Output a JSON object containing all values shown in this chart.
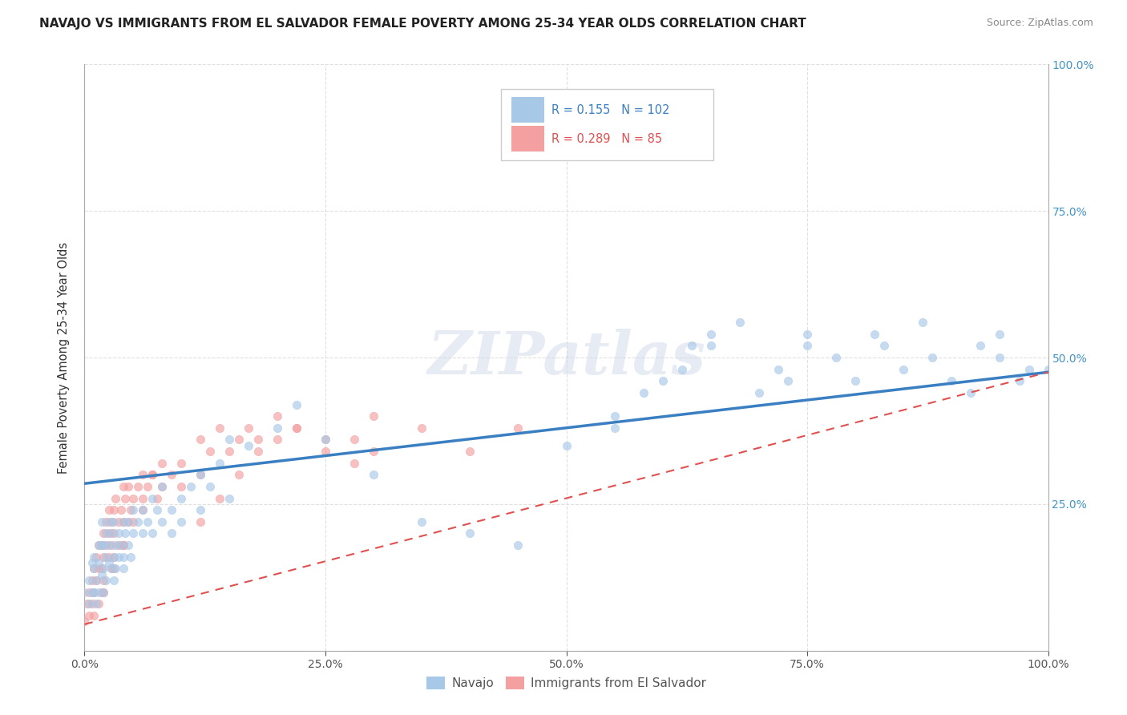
{
  "title": "NAVAJO VS IMMIGRANTS FROM EL SALVADOR FEMALE POVERTY AMONG 25-34 YEAR OLDS CORRELATION CHART",
  "source": "Source: ZipAtlas.com",
  "ylabel": "Female Poverty Among 25-34 Year Olds",
  "navajo_color": "#a8c8e8",
  "salvador_color": "#f4a0a0",
  "navajo_line_color": "#3a7fc1",
  "salvador_line_color": "#e05050",
  "R_navajo": 0.155,
  "N_navajo": 102,
  "R_salvador": 0.289,
  "N_salvador": 85,
  "xlim": [
    0,
    1
  ],
  "ylim": [
    0,
    1
  ],
  "xtick_positions": [
    0,
    0.25,
    0.5,
    0.75,
    1.0
  ],
  "xtick_labels": [
    "0.0%",
    "25.0%",
    "50.0%",
    "75.0%",
    "100.0%"
  ],
  "right_ytick_positions": [
    0.25,
    0.5,
    0.75,
    1.0
  ],
  "right_ytick_labels": [
    "25.0%",
    "50.0%",
    "75.0%",
    "100.0%"
  ],
  "watermark": "ZIPatlas",
  "legend_bottom_labels": [
    "Navajo",
    "Immigrants from El Salvador"
  ],
  "navajo_line_x0": 0.0,
  "navajo_line_y0": 0.285,
  "navajo_line_x1": 1.0,
  "navajo_line_y1": 0.475,
  "salvador_line_x0": 0.0,
  "salvador_line_y0": 0.045,
  "salvador_line_x1": 1.0,
  "salvador_line_y1": 0.475,
  "navajo_x": [
    0.0,
    0.005,
    0.005,
    0.008,
    0.008,
    0.01,
    0.01,
    0.01,
    0.012,
    0.012,
    0.015,
    0.015,
    0.015,
    0.018,
    0.018,
    0.018,
    0.02,
    0.02,
    0.02,
    0.022,
    0.022,
    0.022,
    0.025,
    0.025,
    0.025,
    0.028,
    0.028,
    0.03,
    0.03,
    0.03,
    0.032,
    0.032,
    0.035,
    0.035,
    0.038,
    0.04,
    0.04,
    0.04,
    0.042,
    0.045,
    0.045,
    0.048,
    0.05,
    0.05,
    0.055,
    0.06,
    0.06,
    0.065,
    0.07,
    0.07,
    0.075,
    0.08,
    0.08,
    0.09,
    0.09,
    0.1,
    0.1,
    0.11,
    0.12,
    0.12,
    0.13,
    0.14,
    0.15,
    0.15,
    0.17,
    0.2,
    0.22,
    0.25,
    0.3,
    0.35,
    0.4,
    0.45,
    0.5,
    0.55,
    0.55,
    0.58,
    0.6,
    0.62,
    0.63,
    0.65,
    0.65,
    0.68,
    0.7,
    0.72,
    0.73,
    0.75,
    0.75,
    0.78,
    0.8,
    0.82,
    0.83,
    0.85,
    0.87,
    0.88,
    0.9,
    0.92,
    0.93,
    0.95,
    0.95,
    0.97,
    0.98,
    1.0
  ],
  "navajo_y": [
    0.1,
    0.12,
    0.08,
    0.15,
    0.1,
    0.14,
    0.1,
    0.16,
    0.12,
    0.08,
    0.15,
    0.1,
    0.18,
    0.13,
    0.18,
    0.22,
    0.14,
    0.1,
    0.18,
    0.16,
    0.12,
    0.2,
    0.15,
    0.18,
    0.22,
    0.14,
    0.2,
    0.16,
    0.12,
    0.22,
    0.18,
    0.14,
    0.2,
    0.16,
    0.18,
    0.22,
    0.16,
    0.14,
    0.2,
    0.18,
    0.22,
    0.16,
    0.2,
    0.24,
    0.22,
    0.24,
    0.2,
    0.22,
    0.26,
    0.2,
    0.24,
    0.22,
    0.28,
    0.24,
    0.2,
    0.26,
    0.22,
    0.28,
    0.3,
    0.24,
    0.28,
    0.32,
    0.26,
    0.36,
    0.35,
    0.38,
    0.42,
    0.36,
    0.3,
    0.22,
    0.2,
    0.18,
    0.35,
    0.38,
    0.4,
    0.44,
    0.46,
    0.48,
    0.52,
    0.52,
    0.54,
    0.56,
    0.44,
    0.48,
    0.46,
    0.52,
    0.54,
    0.5,
    0.46,
    0.54,
    0.52,
    0.48,
    0.56,
    0.5,
    0.46,
    0.44,
    0.52,
    0.5,
    0.54,
    0.46,
    0.48,
    0.48
  ],
  "salvador_x": [
    0.0,
    0.003,
    0.005,
    0.005,
    0.008,
    0.008,
    0.01,
    0.01,
    0.01,
    0.012,
    0.012,
    0.015,
    0.015,
    0.015,
    0.018,
    0.018,
    0.018,
    0.02,
    0.02,
    0.02,
    0.022,
    0.022,
    0.025,
    0.025,
    0.025,
    0.028,
    0.028,
    0.028,
    0.03,
    0.03,
    0.03,
    0.032,
    0.035,
    0.035,
    0.038,
    0.04,
    0.04,
    0.04,
    0.042,
    0.045,
    0.045,
    0.048,
    0.05,
    0.055,
    0.06,
    0.06,
    0.065,
    0.07,
    0.075,
    0.08,
    0.08,
    0.09,
    0.1,
    0.1,
    0.12,
    0.12,
    0.13,
    0.14,
    0.15,
    0.16,
    0.17,
    0.18,
    0.2,
    0.22,
    0.25,
    0.28,
    0.3,
    0.35,
    0.4,
    0.45,
    0.12,
    0.14,
    0.16,
    0.18,
    0.2,
    0.22,
    0.25,
    0.28,
    0.3,
    0.02,
    0.03,
    0.04,
    0.05,
    0.06,
    0.07
  ],
  "salvador_y": [
    0.05,
    0.08,
    0.1,
    0.06,
    0.12,
    0.08,
    0.14,
    0.1,
    0.06,
    0.16,
    0.12,
    0.18,
    0.14,
    0.08,
    0.18,
    0.14,
    0.1,
    0.2,
    0.16,
    0.12,
    0.22,
    0.18,
    0.24,
    0.2,
    0.16,
    0.22,
    0.18,
    0.14,
    0.24,
    0.2,
    0.16,
    0.26,
    0.22,
    0.18,
    0.24,
    0.28,
    0.22,
    0.18,
    0.26,
    0.28,
    0.22,
    0.24,
    0.26,
    0.28,
    0.3,
    0.24,
    0.28,
    0.3,
    0.26,
    0.28,
    0.32,
    0.3,
    0.32,
    0.28,
    0.36,
    0.3,
    0.34,
    0.38,
    0.34,
    0.36,
    0.38,
    0.36,
    0.4,
    0.38,
    0.36,
    0.32,
    0.34,
    0.38,
    0.34,
    0.38,
    0.22,
    0.26,
    0.3,
    0.34,
    0.36,
    0.38,
    0.34,
    0.36,
    0.4,
    0.1,
    0.14,
    0.18,
    0.22,
    0.26,
    0.3
  ]
}
